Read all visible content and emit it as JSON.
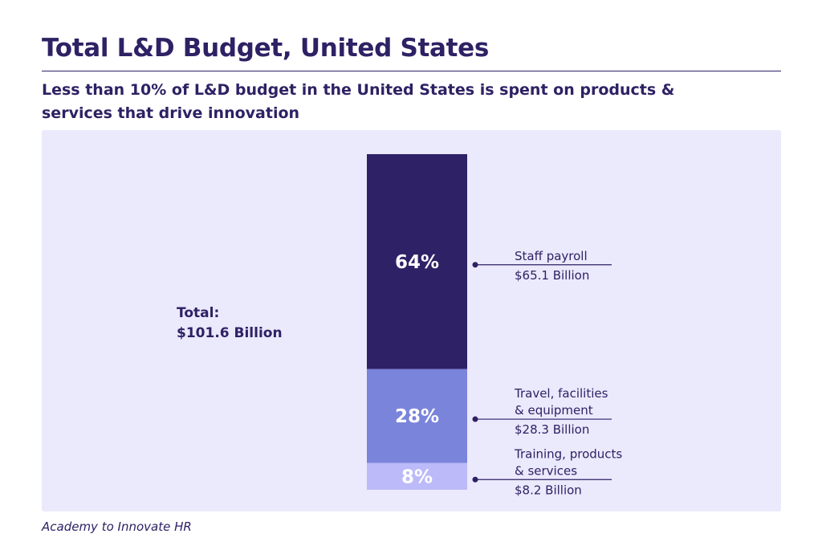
{
  "header": {
    "title": "Total L&D Budget, United States",
    "subtitle": "Less than 10% of L&D budget in the United States is spent on products & services that drive innovation"
  },
  "total": {
    "label": "Total:",
    "value": "$101.6 Billion"
  },
  "chart_data": {
    "type": "bar",
    "stacked": true,
    "title": "Total L&D Budget, United States",
    "unit": "Billion USD",
    "total": 101.6,
    "segments": [
      {
        "name": "Staff payroll",
        "percent": 64,
        "percent_label": "64%",
        "value": 65.1,
        "lines": [
          "Staff payroll"
        ],
        "value_label": "$65.1 Billion",
        "color": "#2e2166"
      },
      {
        "name": "Travel, facilities & equipment",
        "percent": 28,
        "percent_label": "28%",
        "value": 28.3,
        "lines": [
          "Travel, facilities",
          "& equipment"
        ],
        "value_label": "$28.3 Billion",
        "color": "#7a84da"
      },
      {
        "name": "Training, products & services",
        "percent": 8,
        "percent_label": "8%",
        "value": 8.2,
        "lines": [
          "Training, products",
          "& services"
        ],
        "value_label": "$8.2 Billion",
        "color": "#bcbaf9"
      }
    ]
  },
  "source": "Academy to Innovate HR"
}
